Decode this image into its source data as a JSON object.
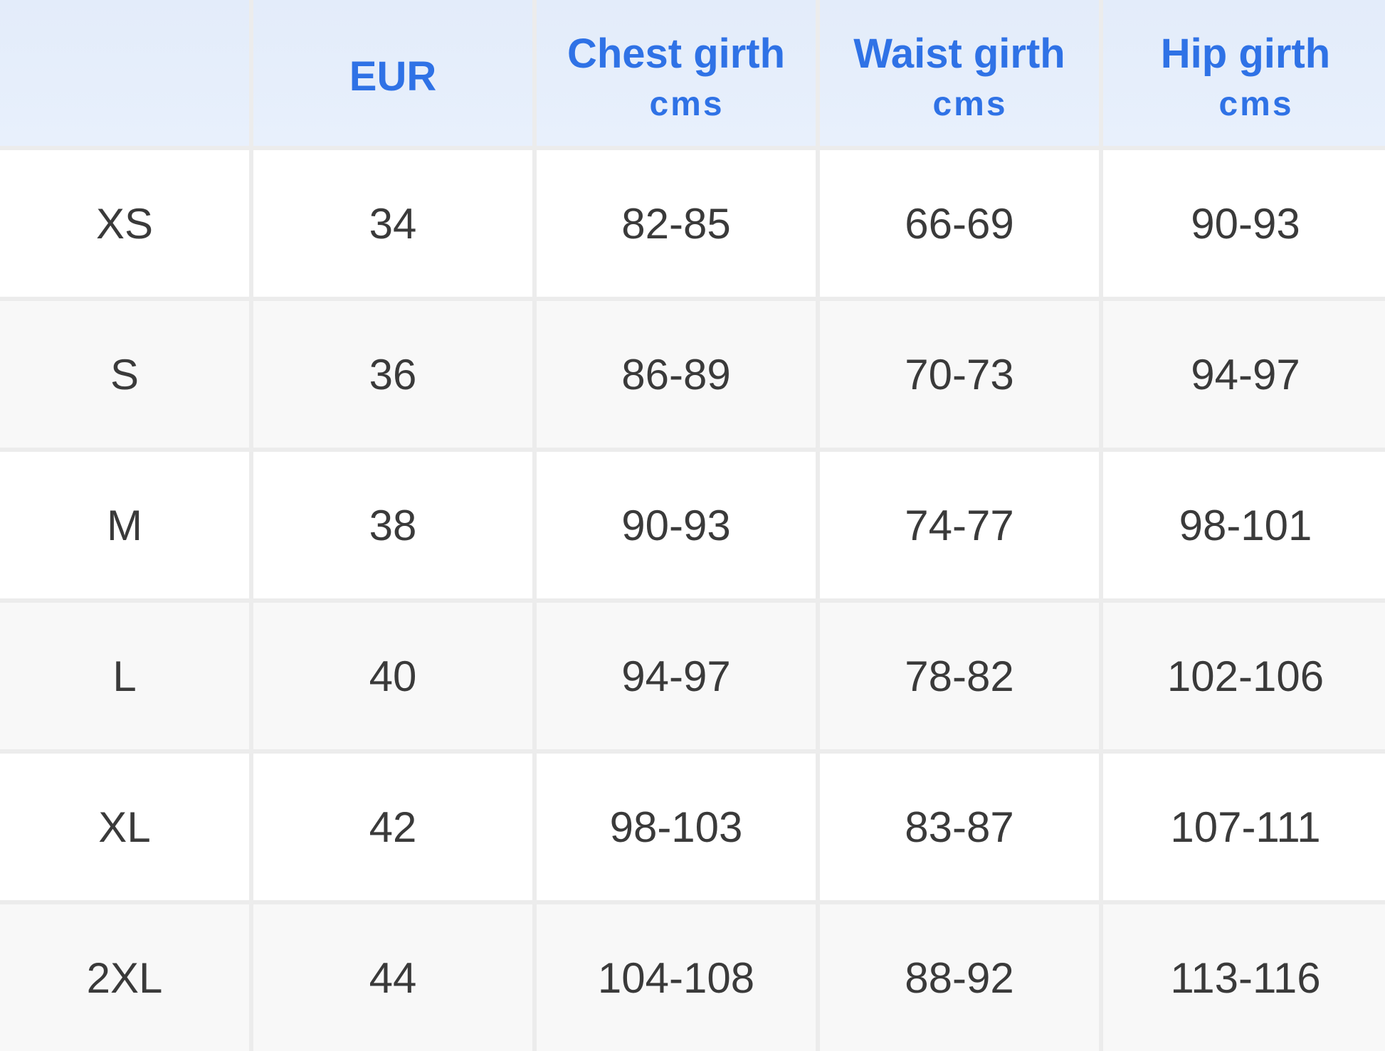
{
  "table": {
    "headers": [
      {
        "label": "",
        "unit": ""
      },
      {
        "label": "EUR",
        "unit": ""
      },
      {
        "label": "Chest girth",
        "unit": "cms"
      },
      {
        "label": "Waist girth",
        "unit": "cms"
      },
      {
        "label": "Hip girth",
        "unit": "cms"
      }
    ],
    "rows": [
      [
        "XS",
        "34",
        "82-85",
        "66-69",
        "90-93"
      ],
      [
        "S",
        "36",
        "86-89",
        "70-73",
        "94-97"
      ],
      [
        "M",
        "38",
        "90-93",
        "74-77",
        "98-101"
      ],
      [
        "L",
        "40",
        "94-97",
        "78-82",
        "102-106"
      ],
      [
        "XL",
        "42",
        "98-103",
        "83-87",
        "107-111"
      ],
      [
        "2XL",
        "44",
        "104-108",
        "88-92",
        "113-116"
      ]
    ]
  },
  "colors": {
    "header_text": "#2f72e6",
    "header_bg": "#e5eefb",
    "body_text": "#3a3a3a"
  }
}
